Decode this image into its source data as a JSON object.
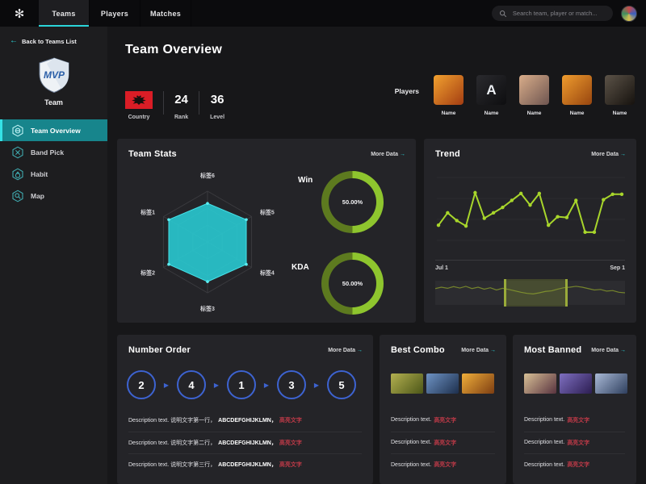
{
  "ui": {
    "more_arrow": "→",
    "back_arrow": "←",
    "logo_glyph": "✻",
    "seq_arrow": "▶"
  },
  "colors": {
    "accent_teal": "#2bd5d9",
    "line_green": "#a8d62b",
    "donut_bright": "#8ec52e",
    "donut_dim": "#5d7a1f",
    "radar_fill": "#29c5cd",
    "circle_blue": "#3d63d1",
    "highlight_red": "#c03a48"
  },
  "nav": {
    "tabs": [
      {
        "label": "Teams",
        "active": true
      },
      {
        "label": "Players",
        "active": false
      },
      {
        "label": "Matches",
        "active": false
      }
    ],
    "search": {
      "placeholder": "Search team, player or match..."
    }
  },
  "sidebar": {
    "back_label": "Back to Teams List",
    "team_logo_text": "MVP",
    "team_name": "Team",
    "menu": [
      {
        "label": "Team Overview",
        "icon": "overview-hexagon-icon",
        "active": true
      },
      {
        "label": "Band Pick",
        "icon": "band-pick-hexagon-icon",
        "active": false
      },
      {
        "label": "Habit",
        "icon": "habit-hexagon-icon",
        "active": false
      },
      {
        "label": "Map",
        "icon": "map-hexagon-icon",
        "active": false
      }
    ]
  },
  "header": {
    "title": "Team Overview",
    "country_label": "Country",
    "rank_value": "24",
    "rank_label": "Rank",
    "level_value": "36",
    "level_label": "Level",
    "players_label": "Players",
    "players": [
      {
        "name": "Name",
        "c1": "#f2a12f",
        "c2": "#a33d12"
      },
      {
        "name": "Name",
        "c1": "#2a2a2e",
        "c2": "#0e0e10",
        "letter": "A"
      },
      {
        "name": "Name",
        "c1": "#d9ad8a",
        "c2": "#6e5550"
      },
      {
        "name": "Name",
        "c1": "#ef9c2e",
        "c2": "#97450f"
      },
      {
        "name": "Name",
        "c1": "#5c5348",
        "c2": "#16120e"
      }
    ]
  },
  "team_stats": {
    "title": "Team Stats",
    "more_label": "More Data",
    "radar": {
      "labels": [
        "标签6",
        "标签5",
        "标签4",
        "标签3",
        "标签2",
        "标签1"
      ],
      "values": [
        76,
        88,
        88,
        78,
        88,
        88
      ],
      "max": 100
    },
    "donuts": [
      {
        "label": "Win",
        "value_text": "50.00%",
        "percent": 50
      },
      {
        "label": "KDA",
        "value_text": "50.00%",
        "percent": 50
      }
    ]
  },
  "trend": {
    "title": "Trend",
    "more_label": "More Data",
    "x_start_label": "Jul 1",
    "x_end_label": "Sep 1",
    "values": [
      30,
      46,
      36,
      29,
      72,
      39,
      46,
      53,
      62,
      71,
      56,
      71,
      30,
      41,
      40,
      62,
      21,
      21,
      63,
      70,
      70
    ],
    "brush": {
      "values": [
        55,
        60,
        56,
        62,
        57,
        63,
        55,
        60,
        53,
        58,
        50,
        56,
        52,
        47,
        42,
        38,
        36,
        40,
        45,
        47,
        53,
        58,
        60,
        63,
        60,
        55,
        50,
        52,
        46,
        48,
        42,
        40
      ],
      "start_pct": 36,
      "width_pct": 34
    }
  },
  "number_order": {
    "title": "Number Order",
    "more_label": "More Data",
    "sequence": [
      "2",
      "4",
      "1",
      "3",
      "5"
    ],
    "rows": [
      {
        "text": "Description text. 说明文字第一行，",
        "em": "ABCDEFGHIJKLMN，",
        "highlight": "高亮文字"
      },
      {
        "text": "Description text. 说明文字第二行，",
        "em": "ABCDEFGHIJKLMN，",
        "highlight": "高亮文字"
      },
      {
        "text": "Description text. 说明文字第三行，",
        "em": "ABCDEFGHIJKLMN，",
        "highlight": "高亮文字"
      }
    ]
  },
  "best_combo": {
    "title": "Best Combo",
    "more_label": "More Data",
    "heroes": [
      {
        "name": "hero-1",
        "c1": "#b3b050",
        "c2": "#4c5618"
      },
      {
        "name": "hero-2",
        "c1": "#6e93c4",
        "c2": "#1d2f4d"
      },
      {
        "name": "hero-3",
        "c1": "#efae3a",
        "c2": "#7e3e12"
      }
    ],
    "rows": [
      {
        "text": "Description text.",
        "highlight": "高亮文字"
      },
      {
        "text": "Description text.",
        "highlight": "高亮文字"
      },
      {
        "text": "Description text.",
        "highlight": "高亮文字"
      }
    ]
  },
  "most_banned": {
    "title": "Most Banned",
    "more_label": "More Data",
    "heroes": [
      {
        "name": "hero-1",
        "c1": "#d8c096",
        "c2": "#59333f"
      },
      {
        "name": "hero-2",
        "c1": "#7e6fc0",
        "c2": "#2c1d52"
      },
      {
        "name": "hero-3",
        "c1": "#a9b9d6",
        "c2": "#2e3f5e"
      }
    ],
    "rows": [
      {
        "text": "Description text.",
        "highlight": "高亮文字"
      },
      {
        "text": "Description text.",
        "highlight": "高亮文字"
      },
      {
        "text": "Description text.",
        "highlight": "高亮文字"
      }
    ]
  }
}
